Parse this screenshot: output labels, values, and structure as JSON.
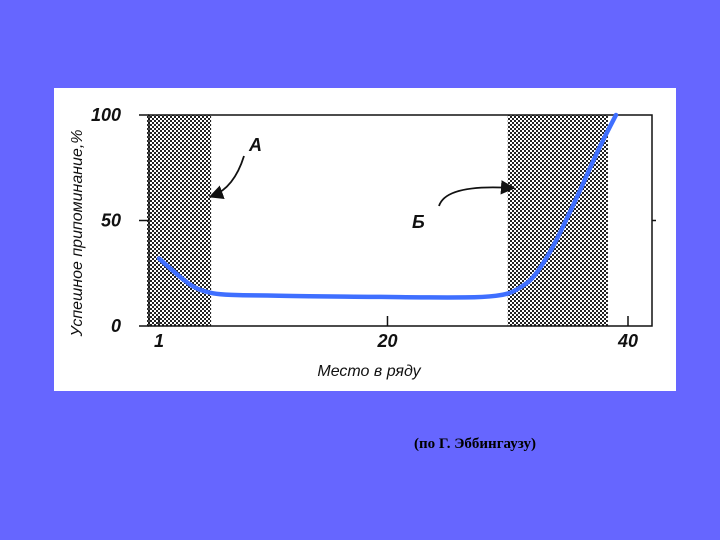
{
  "caption": "(по Г. Эббингаузу)",
  "chart_data": {
    "type": "line",
    "xlabel": "Место в ряду",
    "ylabel": "Успешное припоминание,%",
    "xlim": [
      1,
      40
    ],
    "ylim": [
      0,
      100
    ],
    "x_ticks": [
      {
        "value": 1,
        "label": "1"
      },
      {
        "value": 20,
        "label": "20"
      },
      {
        "value": 40,
        "label": "40"
      }
    ],
    "y_ticks": [
      {
        "value": 0,
        "label": "0"
      },
      {
        "value": 50,
        "label": "50"
      },
      {
        "value": 100,
        "label": "100"
      }
    ],
    "shaded_regions": [
      {
        "x_from": 1,
        "x_to": 5
      },
      {
        "x_from": 31,
        "x_to": 38
      }
    ],
    "annotations": [
      {
        "label": "А",
        "points_to_x": 5
      },
      {
        "label": "Б",
        "points_to_x": 31
      }
    ],
    "series": [
      {
        "color": "#3f6fff",
        "x": [
          1,
          2,
          3,
          4,
          5,
          6,
          8,
          10,
          12,
          15,
          18,
          20,
          22,
          25,
          28,
          30,
          31,
          32,
          33,
          34,
          35,
          36,
          37,
          38,
          39
        ],
        "y": [
          32,
          27,
          22,
          18,
          16,
          15,
          14.5,
          14.5,
          14.2,
          14,
          13.8,
          13.8,
          13.6,
          13.5,
          13.6,
          15,
          18,
          22,
          30,
          40,
          52,
          64,
          77,
          89,
          100
        ]
      }
    ],
    "grid": false
  }
}
